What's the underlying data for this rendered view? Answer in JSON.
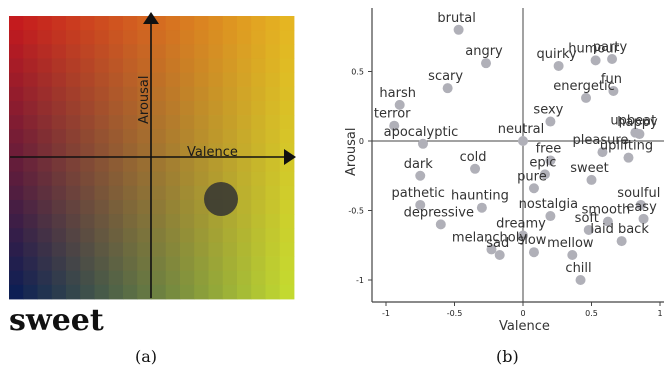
{
  "panel_a": {
    "caption": "(a)",
    "word": "sweet",
    "x_axis_label": "Valence",
    "y_axis_label": "Arousal",
    "marker": {
      "valence": 0.5,
      "arousal": -0.3
    },
    "colors": {
      "top_left": "#c41b1e",
      "top_right": "#e5b522",
      "bottom_left": "#0e1f54",
      "bottom_right": "#c3d930",
      "marker": "#333333"
    }
  },
  "panel_b": {
    "caption": "(b)",
    "point_color": "#b0b0b8"
  },
  "chart_data": {
    "type": "scatter",
    "xlabel": "Valence",
    "ylabel": "Arousal",
    "xlim": [
      -1.1,
      1.0
    ],
    "ylim": [
      -1.15,
      0.95
    ],
    "xticks": [
      -1,
      -0.5,
      0,
      0.5,
      1
    ],
    "yticks": [
      0.5,
      0,
      -0.5,
      -1
    ],
    "tick_labels_x": [
      "-1",
      "-0.5",
      "0",
      "0.5",
      "1"
    ],
    "tick_labels_y": [
      "0.5",
      "0",
      "-0.5",
      "-1"
    ],
    "points": [
      {
        "label": "brutal",
        "x": -0.47,
        "y": 0.8
      },
      {
        "label": "angry",
        "x": -0.27,
        "y": 0.56
      },
      {
        "label": "scary",
        "x": -0.55,
        "y": 0.38
      },
      {
        "label": "harsh",
        "x": -0.9,
        "y": 0.26
      },
      {
        "label": "terror",
        "x": -0.94,
        "y": 0.11
      },
      {
        "label": "apocalyptic",
        "x": -0.73,
        "y": -0.02
      },
      {
        "label": "neutral",
        "x": 0.0,
        "y": 0.0
      },
      {
        "label": "quirky",
        "x": 0.26,
        "y": 0.54
      },
      {
        "label": "humour",
        "x": 0.53,
        "y": 0.58
      },
      {
        "label": "party",
        "x": 0.65,
        "y": 0.59
      },
      {
        "label": "energetic",
        "x": 0.46,
        "y": 0.31
      },
      {
        "label": "fun",
        "x": 0.66,
        "y": 0.36
      },
      {
        "label": "sexy",
        "x": 0.2,
        "y": 0.14
      },
      {
        "label": "upbeat",
        "x": 0.82,
        "y": 0.06
      },
      {
        "label": "happy",
        "x": 0.85,
        "y": 0.05
      },
      {
        "label": "pleasure",
        "x": 0.58,
        "y": -0.08
      },
      {
        "label": "uplifting",
        "x": 0.77,
        "y": -0.12
      },
      {
        "label": "cold",
        "x": -0.35,
        "y": -0.2
      },
      {
        "label": "free",
        "x": 0.2,
        "y": -0.14
      },
      {
        "label": "sweet",
        "x": 0.5,
        "y": -0.28
      },
      {
        "label": "epic",
        "x": 0.16,
        "y": -0.24
      },
      {
        "label": "pure",
        "x": 0.08,
        "y": -0.34
      },
      {
        "label": "dark",
        "x": -0.75,
        "y": -0.25
      },
      {
        "label": "pathetic",
        "x": -0.75,
        "y": -0.46
      },
      {
        "label": "haunting",
        "x": -0.3,
        "y": -0.48
      },
      {
        "label": "nostalgia",
        "x": 0.2,
        "y": -0.54
      },
      {
        "label": "soulful",
        "x": 0.86,
        "y": -0.46
      },
      {
        "label": "smooth",
        "x": 0.62,
        "y": -0.58
      },
      {
        "label": "easy",
        "x": 0.88,
        "y": -0.56
      },
      {
        "label": "depressive",
        "x": -0.6,
        "y": -0.6
      },
      {
        "label": "dreamy",
        "x": 0.0,
        "y": -0.68
      },
      {
        "label": "soft",
        "x": 0.48,
        "y": -0.64
      },
      {
        "label": "laid back",
        "x": 0.72,
        "y": -0.72
      },
      {
        "label": "melancholy",
        "x": -0.23,
        "y": -0.78
      },
      {
        "label": "sad",
        "x": -0.17,
        "y": -0.82
      },
      {
        "label": "slow",
        "x": 0.08,
        "y": -0.8
      },
      {
        "label": "mellow",
        "x": 0.36,
        "y": -0.82
      },
      {
        "label": "chill",
        "x": 0.42,
        "y": -1.0
      }
    ]
  }
}
